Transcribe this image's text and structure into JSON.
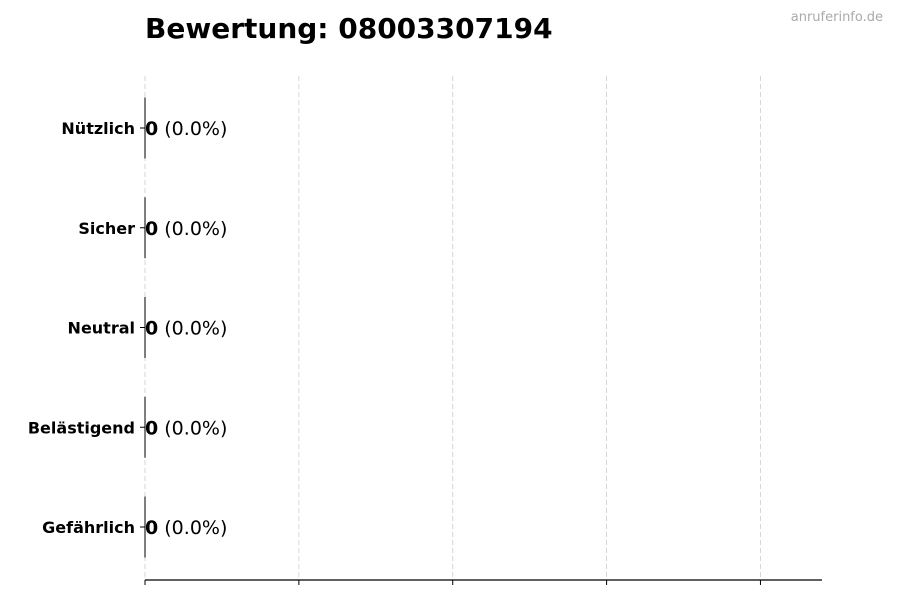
{
  "chart_data": {
    "type": "bar",
    "orientation": "horizontal",
    "title": "Bewertung: 08003307194",
    "categories": [
      "Nützlich",
      "Sicher",
      "Neutral",
      "Belästigend",
      "Gefährlich"
    ],
    "values": [
      0,
      0,
      0,
      0,
      0
    ],
    "data_labels": [
      {
        "count": "0",
        "percent": "(0.0%)"
      },
      {
        "count": "0",
        "percent": "(0.0%)"
      },
      {
        "count": "0",
        "percent": "(0.0%)"
      },
      {
        "count": "0",
        "percent": "(0.0%)"
      },
      {
        "count": "0",
        "percent": "(0.0%)"
      }
    ],
    "xlabel": "",
    "ylabel": "",
    "xlim": [
      0,
      4.4
    ],
    "x_ticks": [
      0,
      1,
      2,
      3,
      4
    ],
    "x_tick_labels_shown": false,
    "grid": "vertical dashed",
    "bar_edge_color": "#000000"
  },
  "watermark": "anruferinfo.de"
}
